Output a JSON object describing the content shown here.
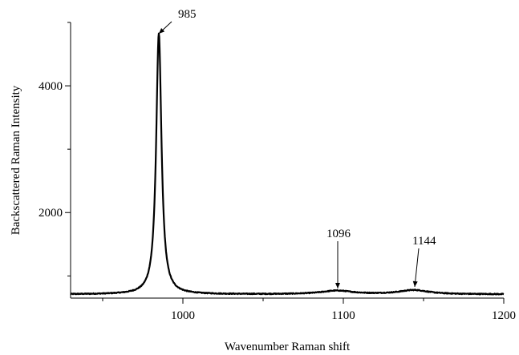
{
  "chart_data": {
    "type": "line",
    "title": "",
    "xlabel": "Wavenumber Raman shift",
    "ylabel": "Backscattered Raman Intensity",
    "xlim": [
      930,
      1200
    ],
    "ylim": [
      650,
      5000
    ],
    "xticks": [
      1000,
      1100,
      1200
    ],
    "xticks_minor": [
      950,
      1050,
      1150
    ],
    "yticks": [
      2000,
      4000
    ],
    "yticks_minor": [
      1000,
      3000,
      5000
    ],
    "grid": false,
    "legend": "none",
    "baseline": 710,
    "peaks": [
      {
        "center": 985,
        "amplitude": 4120,
        "width": 2.0,
        "label": "985"
      },
      {
        "center": 1096,
        "amplitude": 55,
        "width": 12,
        "label": "1096"
      },
      {
        "center": 1144,
        "amplitude": 65,
        "width": 11,
        "label": "1144"
      }
    ],
    "series": [
      {
        "x": [
          930,
          960,
          970,
          975,
          978,
          980,
          981,
          982,
          983,
          984,
          985,
          986,
          987,
          988,
          990,
          993,
          1000,
          1020,
          1050,
          1080,
          1090,
          1096,
          1102,
          1110,
          1125,
          1135,
          1144,
          1153,
          1165,
          1180,
          1200
        ],
        "y": [
          710,
          716,
          735,
          780,
          870,
          1050,
          1250,
          1720,
          2650,
          4000,
          4830,
          4000,
          2650,
          1720,
          1050,
          870,
          760,
          718,
          718,
          714,
          740,
          765,
          745,
          720,
          718,
          742,
          775,
          745,
          720,
          712,
          710
        ]
      }
    ],
    "annotations": [
      {
        "text": "985",
        "x": 985,
        "y": 4830
      },
      {
        "text": "1096",
        "x": 1096,
        "y": 765
      },
      {
        "text": "1144",
        "x": 1144,
        "y": 775
      }
    ]
  }
}
